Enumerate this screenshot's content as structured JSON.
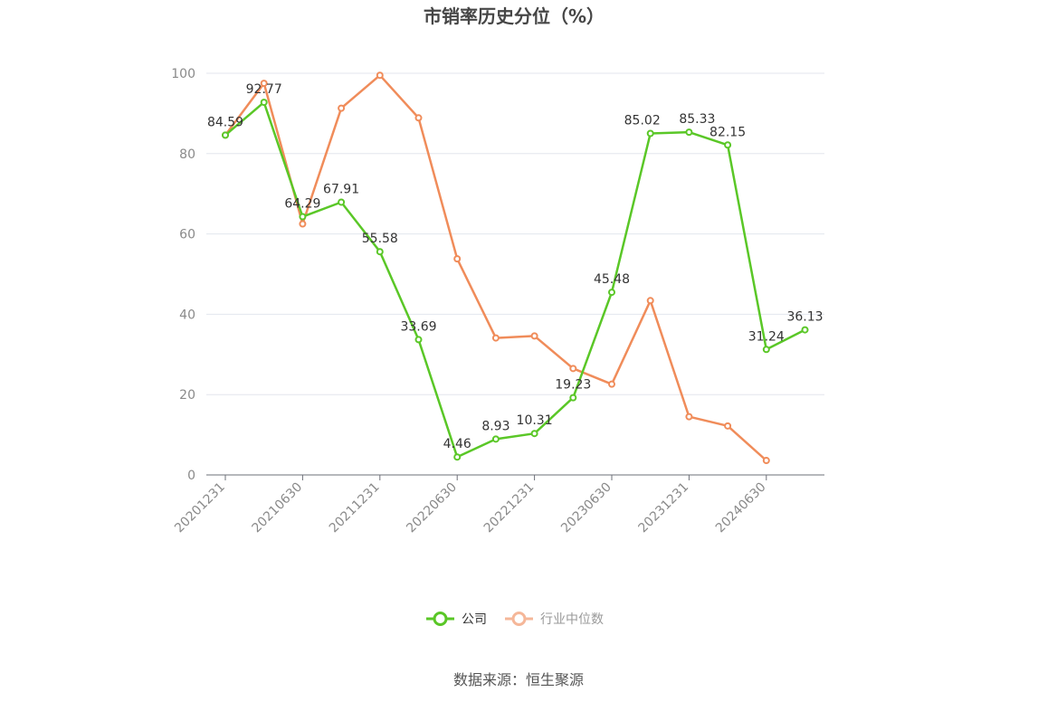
{
  "chart_data": {
    "type": "line",
    "title": "市销率历史分位（%）",
    "x": [
      "20201231",
      "20210331",
      "20210630",
      "20210930",
      "20211231",
      "20220331",
      "20220630",
      "20220930",
      "20221231",
      "20230331",
      "20230630",
      "20230930",
      "20231231",
      "20240331",
      "20240630",
      "20240930"
    ],
    "x_tick_labels": [
      "20201231",
      "20210630",
      "20211231",
      "20220630",
      "20221231",
      "20230630",
      "20231231",
      "20240630"
    ],
    "ylim": [
      0,
      100
    ],
    "y_ticks": [
      0,
      20,
      40,
      60,
      80,
      100
    ],
    "grid": true,
    "legend_position": "bottom",
    "series": [
      {
        "name": "公司",
        "color": "#5ac727",
        "values": [
          84.59,
          92.77,
          64.29,
          67.91,
          55.58,
          33.69,
          4.46,
          8.93,
          10.31,
          19.23,
          45.48,
          85.02,
          85.33,
          82.15,
          31.24,
          36.13
        ],
        "labels": [
          "84.59",
          "92.77",
          "64.29",
          "67.91",
          "55.58",
          "33.69",
          "4.46",
          "8.93",
          "10.31",
          "19.23",
          "45.48",
          "85.02",
          "85.33",
          "82.15",
          "31.24",
          "36.13"
        ]
      },
      {
        "name": "行业中位数",
        "color": "#f08c5a",
        "values": [
          84.6,
          97.5,
          62.5,
          91.3,
          99.5,
          88.9,
          53.8,
          34.1,
          34.6,
          26.5,
          22.6,
          43.4,
          14.5,
          12.2,
          3.6,
          null
        ]
      }
    ],
    "source": "数据来源：恒生聚源"
  },
  "legend": {
    "company_label": "公司",
    "industry_label": "行业中位数",
    "company_color": "#5ac727",
    "industry_color": "#f08c5a",
    "industry_legend_color": "#f5b799"
  }
}
